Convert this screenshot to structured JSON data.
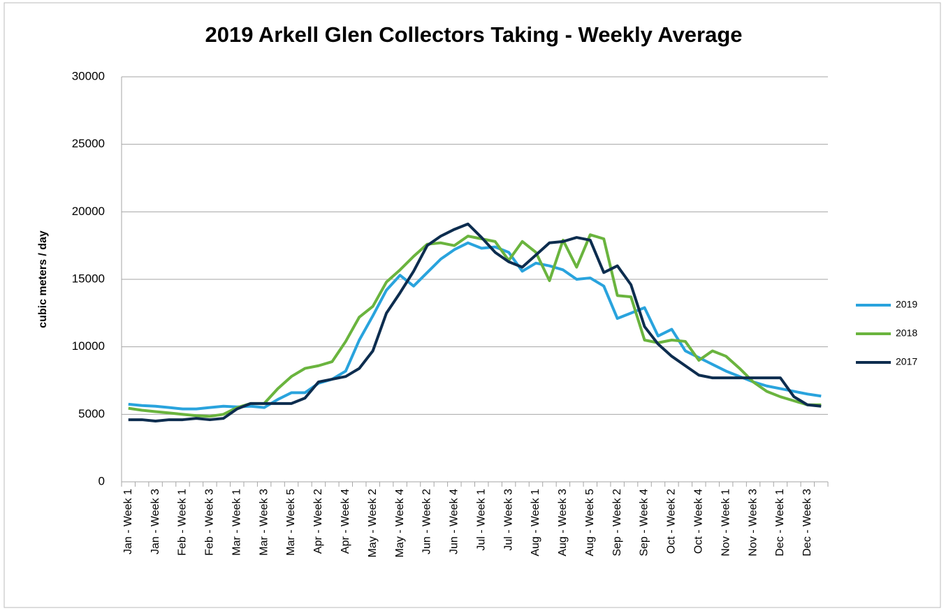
{
  "chart_data": {
    "type": "line",
    "title": "2019 Arkell Glen Collectors Taking - Weekly Average",
    "y_label": "cubic meters / day",
    "categories": [
      "Jan - Week 1",
      null,
      "Jan - Week 3",
      null,
      "Feb - Week 1",
      null,
      "Feb - Week 3",
      null,
      "Mar - Week 1",
      null,
      "Mar - Week 3",
      null,
      "Mar - Week 5",
      null,
      "Apr - Week 2",
      null,
      "Apr - Week 4",
      null,
      "May - Week 2",
      null,
      "May - Week 4",
      null,
      "Jun - Week 2",
      null,
      "Jun - Week 4",
      null,
      "Jul - Week 1",
      null,
      "Jul - Week 3",
      null,
      "Aug - Week 1",
      null,
      "Aug - Week 3",
      null,
      "Aug - Week 5",
      null,
      "Sep - Week 2",
      null,
      "Sep - Week 4",
      null,
      "Oct - Week 2",
      null,
      "Oct - Week 4",
      null,
      "Nov - Week 1",
      null,
      "Nov - Week 3",
      null,
      "Dec - Week 1",
      null,
      "Dec - Week 3",
      null
    ],
    "series": [
      {
        "name": "2019",
        "color": "#29a3dd",
        "values": [
          5750,
          5650,
          5600,
          5500,
          5400,
          5400,
          5500,
          5600,
          5550,
          5600,
          5500,
          6100,
          6600,
          6600,
          7300,
          7600,
          8200,
          10500,
          12300,
          14200,
          15300,
          14500,
          15500,
          16500,
          17200,
          17700,
          17300,
          17400,
          17000,
          15600,
          16200,
          16000,
          15700,
          15000,
          15100,
          14500,
          12100,
          12500,
          12900,
          10800,
          11300,
          9700,
          9200,
          8700,
          8200,
          7800,
          7400,
          7100,
          6900,
          6700,
          6500,
          6350
        ]
      },
      {
        "name": "2018",
        "color": "#6ab43e",
        "values": [
          5450,
          5300,
          5200,
          5100,
          5000,
          4900,
          4850,
          5000,
          5500,
          5800,
          5800,
          6900,
          7800,
          8400,
          8600,
          8900,
          10400,
          12200,
          13000,
          14800,
          15700,
          16700,
          17600,
          17700,
          17500,
          18200,
          18000,
          17800,
          16400,
          17800,
          17000,
          14900,
          17900,
          15900,
          18300,
          18000,
          13800,
          13700,
          10500,
          10300,
          10500,
          10400,
          9000,
          9700,
          9300,
          8400,
          7400,
          6700,
          6300,
          6000,
          5700,
          5700
        ]
      },
      {
        "name": "2017",
        "color": "#0d2d4f",
        "values": [
          4600,
          4600,
          4500,
          4600,
          4600,
          4700,
          4600,
          4700,
          5400,
          5800,
          5800,
          5800,
          5800,
          6200,
          7400,
          7600,
          7800,
          8400,
          9700,
          12500,
          14000,
          15600,
          17500,
          18200,
          18700,
          19100,
          18100,
          17000,
          16300,
          15900,
          16800,
          17700,
          17800,
          18100,
          17900,
          15500,
          16000,
          14600,
          11500,
          10200,
          9300,
          8600,
          7900,
          7700,
          7700,
          7700,
          7700,
          7700,
          7700,
          6300,
          5700,
          5600
        ]
      }
    ],
    "ylim": [
      0,
      30000
    ],
    "yticks": [
      0,
      5000,
      10000,
      15000,
      20000,
      25000,
      30000
    ],
    "grid": true,
    "legend": "right"
  }
}
